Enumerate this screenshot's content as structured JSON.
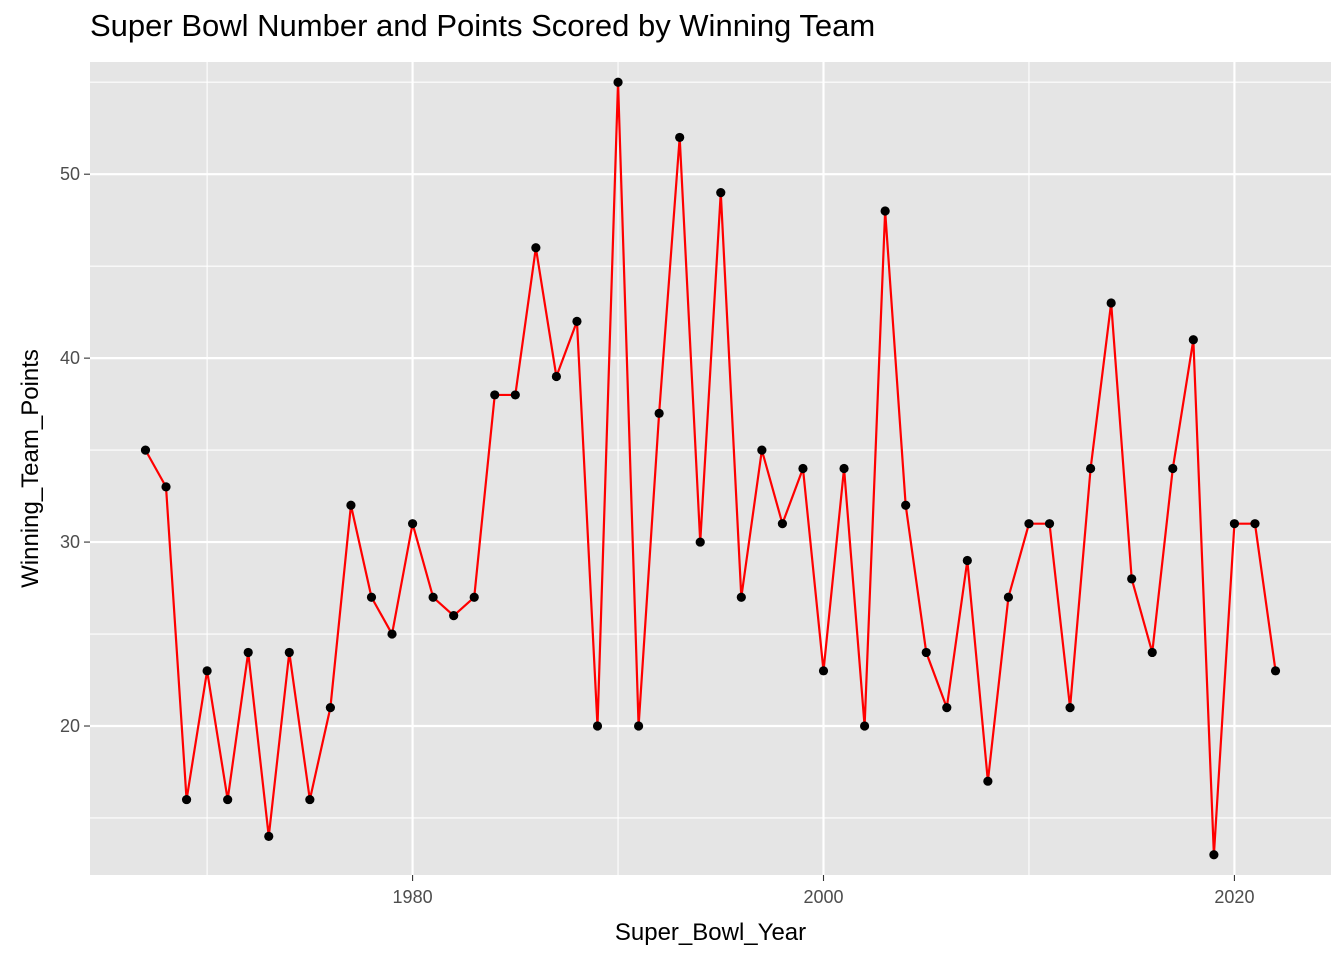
{
  "chart_data": {
    "type": "line",
    "title": "Super Bowl Number and Points Scored by Winning Team",
    "xlabel": "Super_Bowl_Year",
    "ylabel": "Winning_Team_Points",
    "xlim": [
      1964.3,
      2024.7
    ],
    "ylim": [
      11.9,
      56.1
    ],
    "x_ticks": [
      1980,
      2000,
      2020
    ],
    "y_ticks": [
      20,
      30,
      40,
      50
    ],
    "x_minor_ticks": [
      1970,
      1990,
      2010
    ],
    "y_minor_ticks": [
      15,
      25,
      35,
      45,
      55
    ],
    "grid": true,
    "colors": {
      "panel": "#e5e5e5",
      "grid": "#ffffff",
      "line": "#ff0000",
      "point": "#000000"
    },
    "series": [
      {
        "x": [
          1967,
          1968,
          1969,
          1970,
          1971,
          1972,
          1973,
          1974,
          1975,
          1976,
          1977,
          1978,
          1979,
          1980,
          1981,
          1982,
          1983,
          1984,
          1985,
          1986,
          1987,
          1988,
          1989,
          1990,
          1991,
          1992,
          1993,
          1994,
          1995,
          1996,
          1997,
          1998,
          1999,
          2000,
          2001,
          2002,
          2003,
          2004,
          2005,
          2006,
          2007,
          2008,
          2009,
          2010,
          2011,
          2012,
          2013,
          2014,
          2015,
          2016,
          2017,
          2018,
          2019,
          2020,
          2021,
          2022
        ],
        "y": [
          35,
          33,
          16,
          23,
          16,
          24,
          14,
          24,
          16,
          21,
          32,
          27,
          25,
          31,
          27,
          26,
          27,
          38,
          38,
          46,
          39,
          42,
          20,
          55,
          20,
          37,
          52,
          30,
          49,
          27,
          35,
          31,
          34,
          23,
          34,
          20,
          48,
          32,
          24,
          21,
          29,
          17,
          27,
          31,
          31,
          21,
          34,
          43,
          28,
          24,
          34,
          41,
          13,
          31,
          31,
          23
        ]
      }
    ]
  }
}
